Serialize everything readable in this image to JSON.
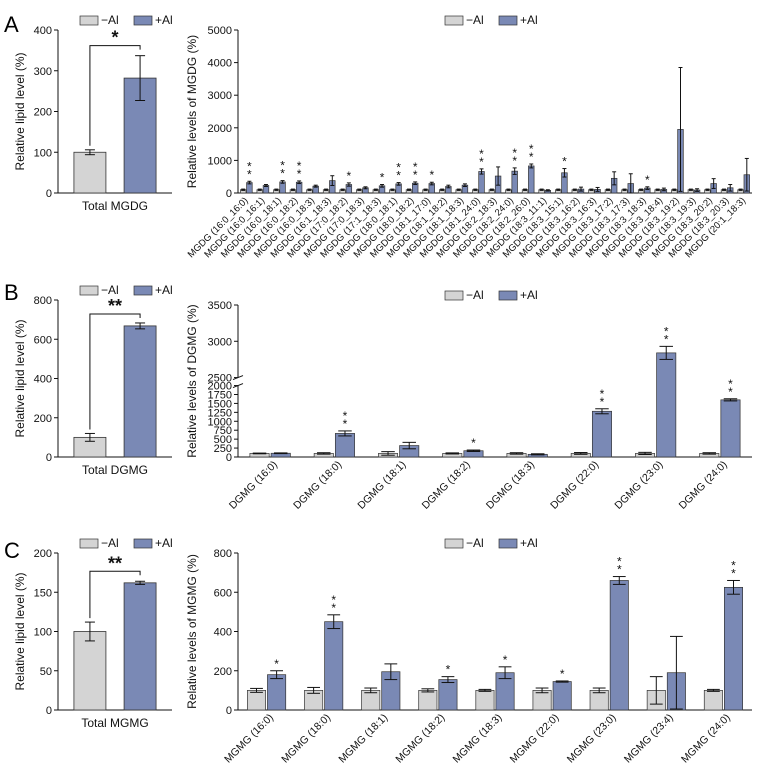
{
  "colors": {
    "minus": "#d4d4d4",
    "plus": "#7a89b5",
    "axis": "#111111"
  },
  "legend": {
    "minus_label": "−Al",
    "plus_label": "+Al"
  },
  "chart_data": [
    {
      "panel": "A",
      "kind": "total",
      "type": "bar",
      "categories": [
        "Total MGDG"
      ],
      "ylabel": "Relative lipid level (%)",
      "ylim": [
        0,
        400
      ],
      "yticks": [
        0,
        100,
        200,
        300,
        400
      ],
      "series": [
        {
          "name": "−Al",
          "values": [
            100
          ],
          "errors": [
            6
          ]
        },
        {
          "name": "+Al",
          "values": [
            282
          ],
          "errors": [
            55
          ]
        }
      ],
      "significance": "*"
    },
    {
      "panel": "A",
      "kind": "species",
      "type": "bar",
      "ylabel": "Relative levels of MGDG (%)",
      "ylim": [
        0,
        5000
      ],
      "yticks": [
        0,
        1000,
        2000,
        3000,
        4000,
        5000
      ],
      "categories": [
        "MGDG (16:0_16:0)",
        "MGDG (16:0_16:1)",
        "MGDG (16:0_18:1)",
        "MGDG (16:0_18:2)",
        "MGDG (16:0_18:3)",
        "MGDG (16:1_18:3)",
        "MGDG (17:0_18:2)",
        "MGDG (17:0_18:3)",
        "MGDG (17:1_18:3)",
        "MGDG (18:0_18:1)",
        "MGDG (18:0_18:2)",
        "MGDG (18:1_17:0)",
        "MGDG (18:1_18:2)",
        "MGDG (18:1_18:3)",
        "MGDG (18:1_24:0)",
        "MGDG (18:2_18:3)",
        "MGDG (18:2_24:0)",
        "MGDG (18:2_26:0)",
        "MGDG (18:3_11:1)",
        "MGDG (18:3_15:1)",
        "MGDG (18:3_16:2)",
        "MGDG (18:3_16:3)",
        "MGDG (18:3_17:2)",
        "MGDG (18:3_17:3)",
        "MGDG (18:3_18:3)",
        "MGDG (18:3_18:4)",
        "MGDG (18:3_19:2)",
        "MGDG (18:3_19:3)",
        "MGDG (18:3_20:2)",
        "MGDG (18:3_20:3)",
        "MGDG (20:1_18:3)"
      ],
      "series": [
        {
          "name": "−Al",
          "values": [
            100,
            100,
            100,
            100,
            100,
            100,
            100,
            100,
            100,
            100,
            100,
            100,
            100,
            100,
            100,
            100,
            100,
            100,
            100,
            100,
            100,
            100,
            100,
            100,
            100,
            100,
            100,
            100,
            100,
            100,
            100
          ],
          "errors": [
            20,
            20,
            20,
            20,
            20,
            20,
            20,
            20,
            20,
            20,
            20,
            20,
            20,
            20,
            20,
            20,
            20,
            20,
            20,
            20,
            20,
            20,
            20,
            20,
            20,
            20,
            20,
            20,
            20,
            20,
            20
          ]
        },
        {
          "name": "+Al",
          "values": [
            320,
            230,
            340,
            330,
            210,
            380,
            260,
            160,
            220,
            280,
            300,
            290,
            200,
            240,
            660,
            520,
            670,
            830,
            80,
            620,
            120,
            110,
            450,
            290,
            150,
            110,
            1950,
            90,
            290,
            160,
            560
          ],
          "errors": [
            40,
            30,
            40,
            40,
            30,
            150,
            50,
            30,
            40,
            40,
            40,
            40,
            40,
            40,
            80,
            280,
            100,
            60,
            20,
            130,
            60,
            60,
            200,
            300,
            40,
            40,
            1900,
            40,
            150,
            100,
            500
          ]
        }
      ],
      "significance": [
        "**",
        "",
        "**",
        "**",
        "",
        "",
        "*",
        "",
        "*",
        "**",
        "**",
        "*",
        "",
        "",
        "**",
        "",
        "**",
        "**",
        "",
        "*",
        "",
        "",
        "",
        "",
        "*",
        "",
        "",
        "",
        "",
        "",
        ""
      ]
    },
    {
      "panel": "B",
      "kind": "total",
      "type": "bar",
      "categories": [
        "Total DGMG"
      ],
      "ylabel": "Relative lipid level (%)",
      "ylim": [
        0,
        800
      ],
      "yticks": [
        0,
        200,
        400,
        600,
        800
      ],
      "series": [
        {
          "name": "−Al",
          "values": [
            100
          ],
          "errors": [
            20
          ]
        },
        {
          "name": "+Al",
          "values": [
            668
          ],
          "errors": [
            15
          ]
        }
      ],
      "significance": "**"
    },
    {
      "panel": "B",
      "kind": "species",
      "type": "bar",
      "ylabel": "Relative levels of DGMG (%)",
      "ylim": [
        0,
        3500
      ],
      "axis_break": [
        2000,
        2500
      ],
      "yticks": [
        0,
        250,
        500,
        750,
        1000,
        1250,
        1500,
        1750,
        2000,
        2500,
        3000,
        3500
      ],
      "ytick_labels": [
        "0",
        "250",
        "500",
        "750",
        "1000",
        "1250",
        "1500",
        "1750",
        "2000",
        "2500",
        "3000",
        "3500"
      ],
      "categories": [
        "DGMG (16:0)",
        "DGMG (18:0)",
        "DGMG (18:1)",
        "DGMG (18:2)",
        "DGMG (18:3)",
        "DGMG (22:0)",
        "DGMG (23:0)",
        "DGMG (24:0)"
      ],
      "series": [
        {
          "name": "−Al",
          "values": [
            100,
            100,
            100,
            100,
            100,
            100,
            100,
            100
          ],
          "errors": [
            10,
            20,
            50,
            15,
            20,
            25,
            30,
            20
          ]
        },
        {
          "name": "+Al",
          "values": [
            105,
            660,
            320,
            175,
            75,
            1280,
            2840,
            1600
          ],
          "errors": [
            10,
            70,
            90,
            20,
            15,
            70,
            90,
            30
          ]
        }
      ],
      "significance": [
        "",
        "**",
        "",
        "*",
        "",
        "**",
        "**",
        "**"
      ]
    },
    {
      "panel": "C",
      "kind": "total",
      "type": "bar",
      "categories": [
        "Total MGMG"
      ],
      "ylabel": "Relative lipid level (%)",
      "ylim": [
        0,
        200
      ],
      "yticks": [
        0,
        50,
        100,
        150,
        200
      ],
      "series": [
        {
          "name": "−Al",
          "values": [
            100
          ],
          "errors": [
            12
          ]
        },
        {
          "name": "+Al",
          "values": [
            162
          ],
          "errors": [
            2
          ]
        }
      ],
      "significance": "**"
    },
    {
      "panel": "C",
      "kind": "species",
      "type": "bar",
      "ylabel": "Relative levels of MGMG (%)",
      "ylim": [
        0,
        800
      ],
      "yticks": [
        0,
        200,
        400,
        600,
        800
      ],
      "categories": [
        "MGMG (16:0)",
        "MGMG (18:0)",
        "MGMG (18:1)",
        "MGMG (18:2)",
        "MGMG (18:3)",
        "MGMG (22:0)",
        "MGMG (23:0)",
        "MGMG (23:4)",
        "MGMG (24:0)"
      ],
      "series": [
        {
          "name": "−Al",
          "values": [
            100,
            100,
            100,
            100,
            100,
            100,
            100,
            100,
            100
          ],
          "errors": [
            10,
            15,
            12,
            8,
            5,
            12,
            12,
            70,
            5
          ]
        },
        {
          "name": "+Al",
          "values": [
            180,
            450,
            195,
            155,
            190,
            145,
            660,
            190,
            625
          ],
          "errors": [
            20,
            35,
            40,
            15,
            30,
            3,
            20,
            185,
            35
          ]
        }
      ],
      "significance": [
        "*",
        "**",
        "",
        "*",
        "*",
        "*",
        "**",
        "",
        "**"
      ]
    }
  ]
}
